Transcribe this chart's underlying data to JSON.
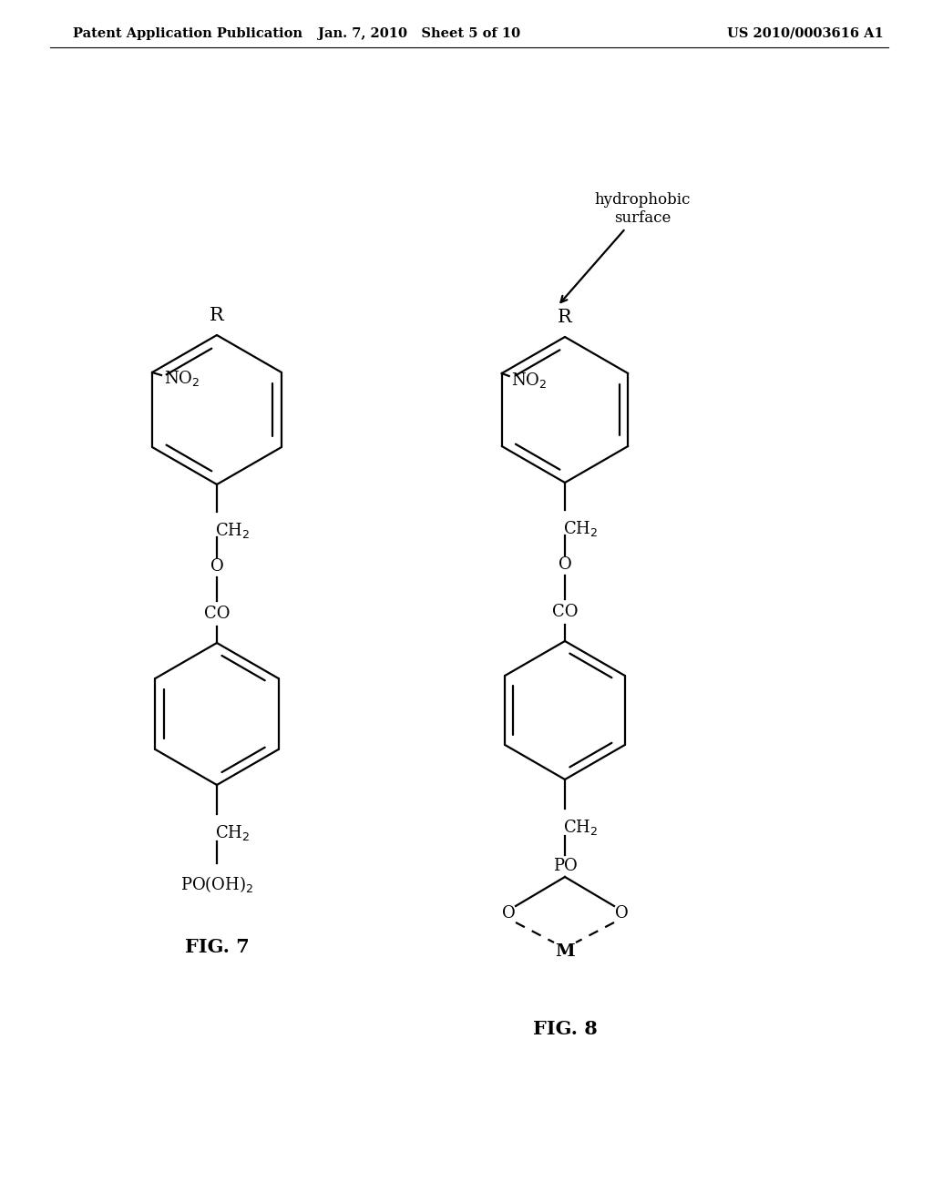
{
  "background_color": "#ffffff",
  "header_left": "Patent Application Publication",
  "header_mid": "Jan. 7, 2010   Sheet 5 of 10",
  "header_right": "US 2010/0003616 A1",
  "fig7_label": "FIG. 7",
  "fig8_label": "FIG. 8",
  "line_color": "#000000",
  "line_width": 1.6,
  "font_size_header": 10.5,
  "font_size_label": 15,
  "font_size_chem": 13
}
